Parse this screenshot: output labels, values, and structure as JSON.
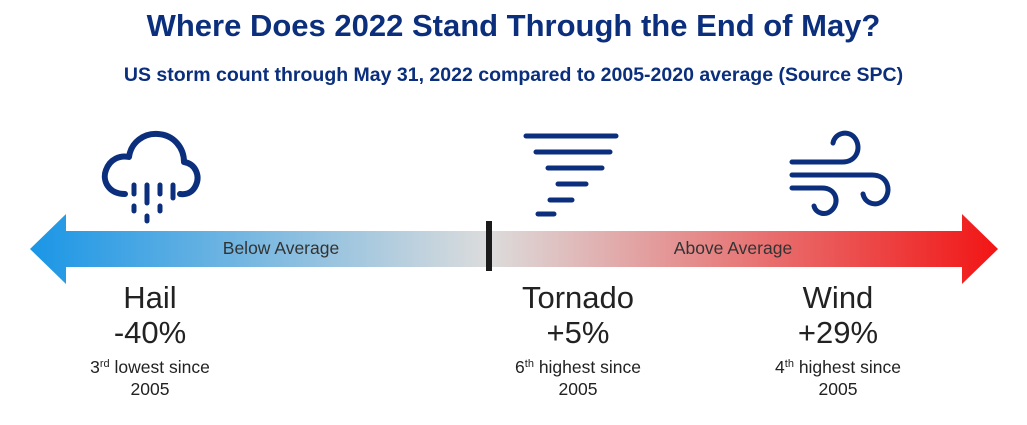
{
  "header": {
    "title": "Where Does 2022 Stand Through the End of May?",
    "subtitle": "US storm count through May 31, 2022 compared to 2005-2020 average (Source SPC)"
  },
  "scale": {
    "left_label": "Below Average",
    "right_label": "Above Average",
    "colors": {
      "left_end": "#1a96e6",
      "center": "#dcdcdc",
      "right_end": "#f21515",
      "divider": "#1b1b1b"
    }
  },
  "stats": [
    {
      "name": "Hail",
      "change": "-40%",
      "rank_num": "3",
      "rank_suffix": "rd",
      "rank_text": " lowest since",
      "year": "2005",
      "icon": "hail-cloud-icon"
    },
    {
      "name": "Tornado",
      "change": "+5%",
      "rank_num": "6",
      "rank_suffix": "th",
      "rank_text": " highest since",
      "year": "2005",
      "icon": "tornado-icon"
    },
    {
      "name": "Wind",
      "change": "+29%",
      "rank_num": "4",
      "rank_suffix": "th",
      "rank_text": " highest since",
      "year": "2005",
      "icon": "wind-icon"
    }
  ],
  "brand_color": "#0b2f7c"
}
